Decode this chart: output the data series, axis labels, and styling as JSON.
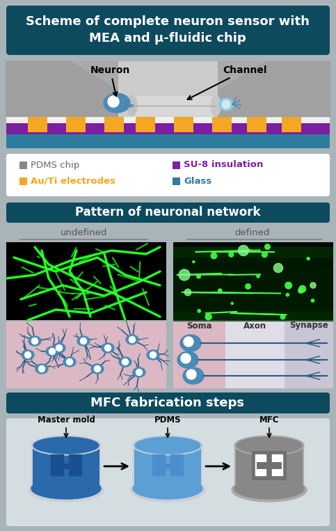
{
  "title1": "Scheme of complete neuron sensor with\nMEA and μ-fluidic chip",
  "title2": "Pattern of neuronal network",
  "title3": "MFC fabrication steps",
  "header_bg": "#0d4a5e",
  "header_text_color": "#ffffff",
  "outer_bg": "#a8b4b8",
  "section_bg": "#d4dde0",
  "legend_bg": "#ffffff",
  "legend_items": [
    {
      "label": "PDMS chip",
      "color": "#888888"
    },
    {
      "label": "SU-8 insulation",
      "color": "#7b1fa2"
    },
    {
      "label": "Au/Ti electrodes",
      "color": "#f5a623"
    },
    {
      "label": "Glass",
      "color": "#2e7d9e"
    }
  ],
  "undefined_label": "undefined",
  "defined_label": "defined",
  "soma_label": "Soma",
  "axon_label": "Axon",
  "synapse_label": "Synapse",
  "mfc_labels": [
    "Master mold",
    "PDMS",
    "MFC"
  ],
  "neuron_label": "Neuron",
  "channel_label": "Channel",
  "pdms_gray": "#888888",
  "purple_color": "#7b1fa2",
  "gold_color": "#f5a623",
  "teal_color": "#2e7d9e",
  "neuron_blue": "#4a8ab5",
  "neuron_dark": "#2a5a80",
  "pink_bg": "#dbb8c4",
  "soma_bg": "#c8c8d8",
  "axon_bg": "#e0e0e8",
  "synapse_bg": "#ccccda"
}
